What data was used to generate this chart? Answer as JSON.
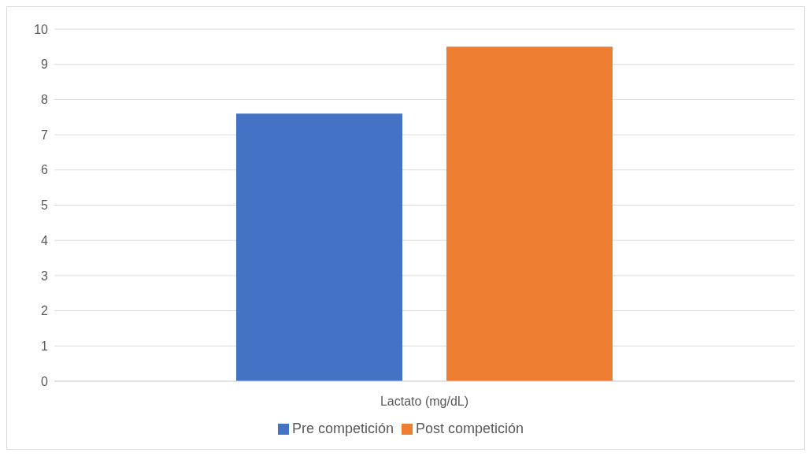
{
  "chart_data": {
    "type": "bar",
    "categories": [
      "Lactato (mg/dL)"
    ],
    "series": [
      {
        "name": "Pre competición",
        "color": "#4472c4",
        "values": [
          7.6
        ]
      },
      {
        "name": "Post competición",
        "color": "#ed7d31",
        "values": [
          9.5
        ]
      }
    ],
    "ylim": [
      0,
      10
    ],
    "yticks": [
      0,
      1,
      2,
      3,
      4,
      5,
      6,
      7,
      8,
      9,
      10
    ],
    "grid": "y",
    "legend": "bottom"
  }
}
